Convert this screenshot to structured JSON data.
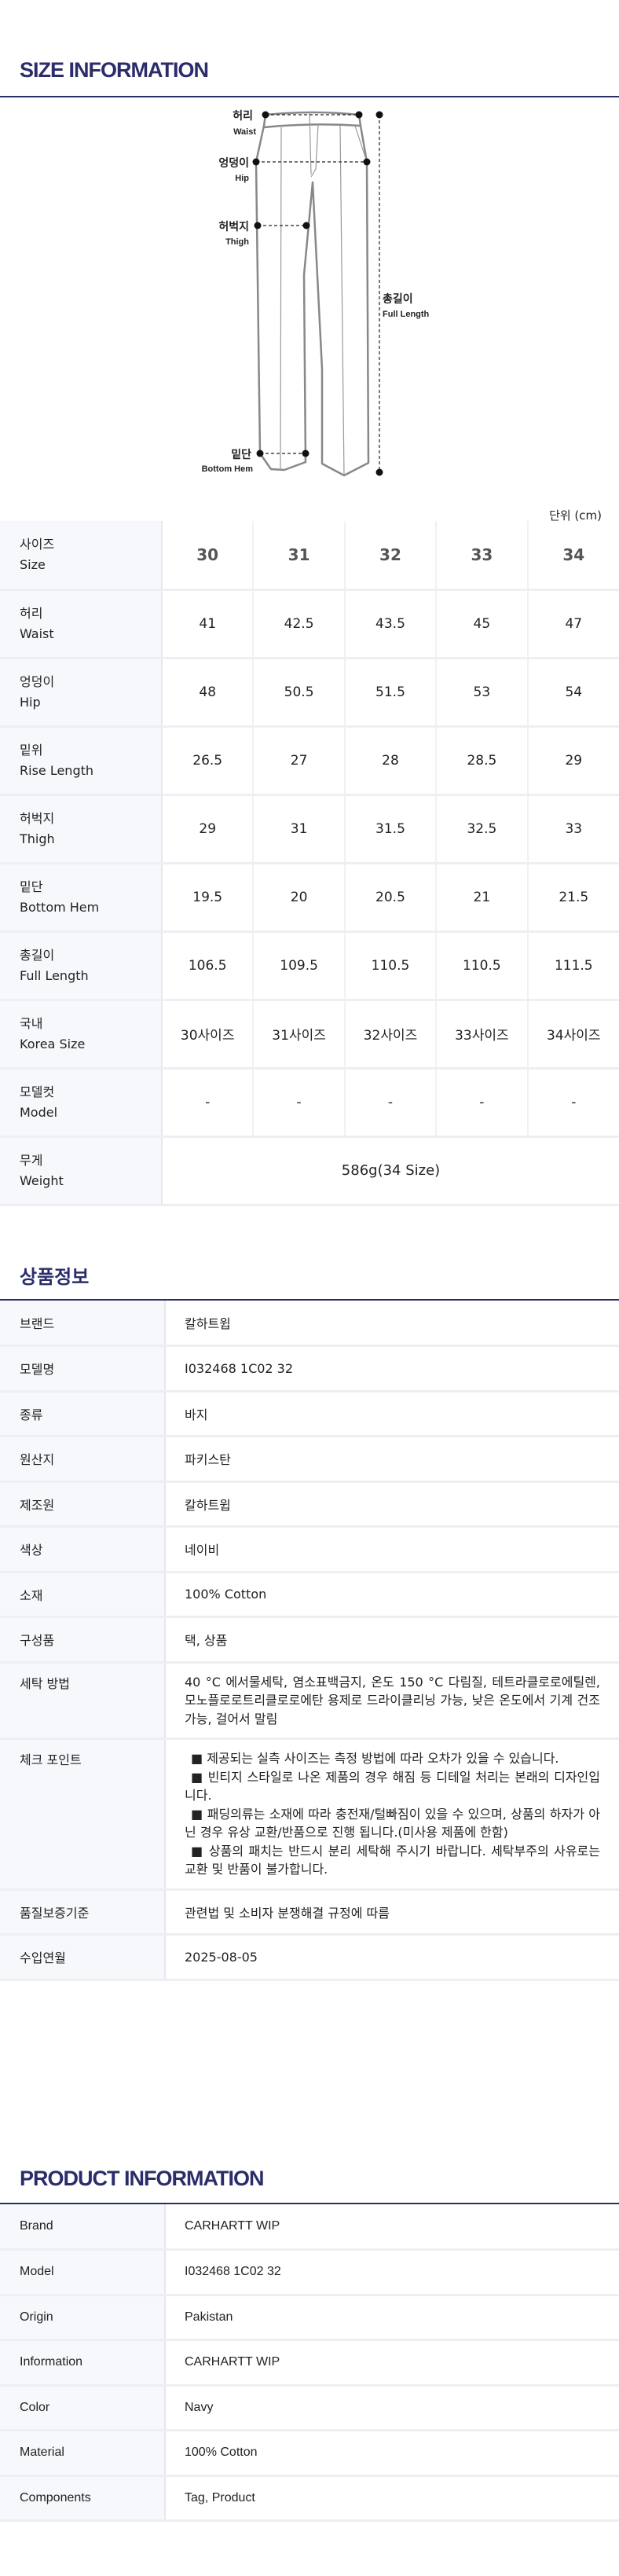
{
  "size_section": {
    "title": "SIZE INFORMATION",
    "unit": "단위 (cm)",
    "diagram_labels": {
      "waist_ko": "허리",
      "waist_en": "Waist",
      "hip_ko": "엉덩이",
      "hip_en": "Hip",
      "thigh_ko": "허벅지",
      "thigh_en": "Thigh",
      "hem_ko": "밑단",
      "hem_en": "Bottom Hem",
      "length_ko": "총길이",
      "length_en": "Full Length"
    },
    "table": {
      "header": {
        "ko": "사이즈",
        "en": "Size",
        "sizes": [
          "30",
          "31",
          "32",
          "33",
          "34"
        ]
      },
      "rows": [
        {
          "ko": "허리",
          "en": "Waist",
          "values": [
            "41",
            "42.5",
            "43.5",
            "45",
            "47"
          ]
        },
        {
          "ko": "엉덩이",
          "en": "Hip",
          "values": [
            "48",
            "50.5",
            "51.5",
            "53",
            "54"
          ]
        },
        {
          "ko": "밑위",
          "en": "Rise Length",
          "values": [
            "26.5",
            "27",
            "28",
            "28.5",
            "29"
          ]
        },
        {
          "ko": "허벅지",
          "en": "Thigh",
          "values": [
            "29",
            "31",
            "31.5",
            "32.5",
            "33"
          ]
        },
        {
          "ko": "밑단",
          "en": "Bottom Hem",
          "values": [
            "19.5",
            "20",
            "20.5",
            "21",
            "21.5"
          ]
        },
        {
          "ko": "총길이",
          "en": "Full Length",
          "values": [
            "106.5",
            "109.5",
            "110.5",
            "110.5",
            "111.5"
          ]
        },
        {
          "ko": "국내",
          "en": "Korea Size",
          "values": [
            "30사이즈",
            "31사이즈",
            "32사이즈",
            "33사이즈",
            "34사이즈"
          ]
        },
        {
          "ko": "모델컷",
          "en": "Model",
          "values": [
            "-",
            "-",
            "-",
            "-",
            "-"
          ]
        }
      ],
      "weight": {
        "ko": "무게",
        "en": "Weight",
        "value": "586g(34 Size)"
      }
    }
  },
  "ko_info": {
    "title": "상품정보",
    "rows": [
      {
        "label": "브랜드",
        "value": "칼하트윕"
      },
      {
        "label": "모델명",
        "value": "I032468 1C02 32"
      },
      {
        "label": "종류",
        "value": "바지"
      },
      {
        "label": "원산지",
        "value": "파키스탄"
      },
      {
        "label": "제조원",
        "value": "칼하트윕"
      },
      {
        "label": "색상",
        "value": "네이비"
      },
      {
        "label": "소재",
        "value": "100% Cotton"
      },
      {
        "label": "구성품",
        "value": "택, 상품"
      },
      {
        "label": "세탁 방법",
        "value": "40 °C 에서물세탁, 염소표백금지, 온도 150 °C 다림질, 테트라클로로에틸렌,모노플로로트리클로로에탄 용제로 드라이클리닝 가능, 낮은 온도에서 기계 건조 가능, 걸어서 말림"
      },
      {
        "label": "체크 포인트",
        "bullets": [
          "■ 제공되는 실측 사이즈는 측정 방법에 따라 오차가 있을 수 있습니다.",
          "■ 빈티지 스타일로 나온 제품의 경우 해짐 등 디테일 처리는 본래의 디자인입니다.",
          "■ 패딩의류는 소재에 따라 충전재/털빠짐이 있을 수 있으며, 상품의 하자가 아닌 경우 유상 교환/반품으로 진행 됩니다.(미사용 제품에 한함)",
          "■ 상품의 패치는 반드시 분리 세탁해 주시기 바랍니다. 세탁부주의 사유로는 교환 및 반품이 불가합니다."
        ]
      },
      {
        "label": "품질보증기준",
        "value": "관련법 및 소비자 분쟁해결 규정에 따름"
      },
      {
        "label": "수입연월",
        "value": "2025-08-05"
      }
    ]
  },
  "en_info": {
    "title": "PRODUCT INFORMATION",
    "rows": [
      {
        "label": "Brand",
        "value": "CARHARTT WIP"
      },
      {
        "label": "Model",
        "value": "I032468 1C02 32"
      },
      {
        "label": "Origin",
        "value": "Pakistan"
      },
      {
        "label": "Information",
        "value": "CARHARTT WIP"
      },
      {
        "label": "Color",
        "value": "Navy"
      },
      {
        "label": "Material",
        "value": "100% Cotton"
      },
      {
        "label": "Components",
        "value": "Tag, Product"
      }
    ]
  },
  "colors": {
    "accent": "#2b2d6b",
    "label_bg": "#f7f8fc",
    "border": "#eeeff2"
  }
}
